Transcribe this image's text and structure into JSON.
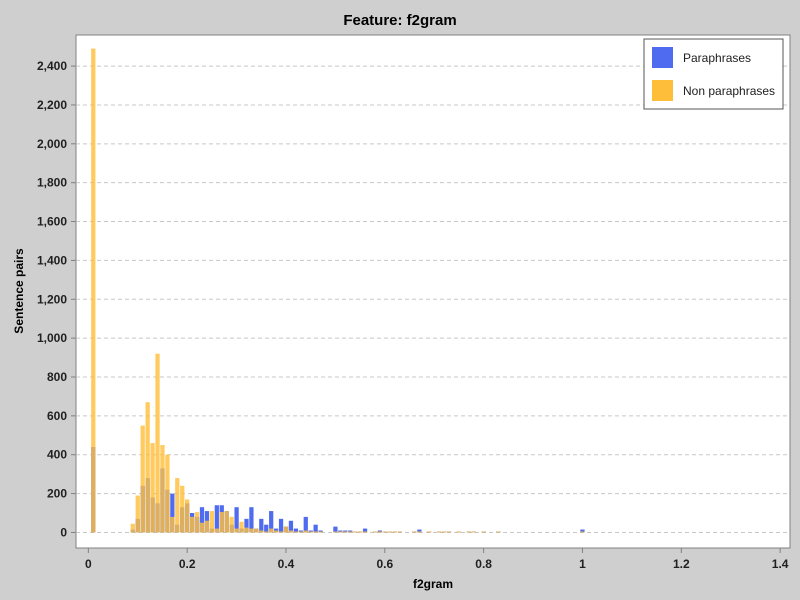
{
  "chart_data": {
    "type": "histogram",
    "title": "Feature: f2gram",
    "xlabel": "f2gram",
    "ylabel": "Sentence pairs",
    "xlim": [
      -0.025,
      1.42
    ],
    "ylim": [
      -80,
      2560
    ],
    "x_ticks": [
      "0",
      "0.2",
      "0.4",
      "0.6",
      "0.8",
      "1",
      "1.2",
      "1.4"
    ],
    "x_tick_values": [
      0,
      0.2,
      0.4,
      0.6,
      0.8,
      1.0,
      1.2,
      1.4
    ],
    "y_ticks": [
      "0",
      "200",
      "400",
      "600",
      "800",
      "1,000",
      "1,200",
      "1,400",
      "1,600",
      "1,800",
      "2,000",
      "2,200",
      "2,400"
    ],
    "y_tick_values": [
      0,
      200,
      400,
      600,
      800,
      1000,
      1200,
      1400,
      1600,
      1800,
      2000,
      2200,
      2400
    ],
    "grid": true,
    "legend_position": "top-right",
    "bin_width": 0.01,
    "bin_centers": [
      0.01,
      0.09,
      0.1,
      0.11,
      0.12,
      0.13,
      0.14,
      0.15,
      0.16,
      0.17,
      0.18,
      0.19,
      0.2,
      0.21,
      0.22,
      0.23,
      0.24,
      0.25,
      0.26,
      0.27,
      0.28,
      0.29,
      0.3,
      0.31,
      0.32,
      0.33,
      0.34,
      0.35,
      0.36,
      0.37,
      0.38,
      0.39,
      0.4,
      0.41,
      0.42,
      0.43,
      0.44,
      0.45,
      0.46,
      0.47,
      0.5,
      0.51,
      0.52,
      0.53,
      0.54,
      0.55,
      0.56,
      0.58,
      0.59,
      0.6,
      0.61,
      0.62,
      0.63,
      0.66,
      0.67,
      0.69,
      0.71,
      0.72,
      0.73,
      0.75,
      0.77,
      0.78,
      0.8,
      0.83,
      1.0
    ],
    "series": [
      {
        "name": "Paraphrases",
        "color": "#4f6cf0",
        "values": [
          440,
          15,
          70,
          240,
          280,
          180,
          150,
          330,
          220,
          200,
          40,
          130,
          150,
          100,
          80,
          130,
          110,
          20,
          140,
          140,
          110,
          40,
          130,
          20,
          70,
          130,
          20,
          70,
          40,
          110,
          20,
          70,
          30,
          60,
          20,
          10,
          80,
          10,
          40,
          10,
          30,
          10,
          10,
          10,
          5,
          5,
          20,
          5,
          10,
          5,
          5,
          5,
          5,
          5,
          15,
          5,
          5,
          5,
          5,
          5,
          5,
          5,
          5,
          5,
          15
        ]
      },
      {
        "name": "Non paraphrases",
        "color": "#ffbe3a",
        "values": [
          2490,
          45,
          190,
          550,
          670,
          460,
          920,
          450,
          400,
          80,
          280,
          240,
          170,
          80,
          105,
          50,
          60,
          110,
          20,
          105,
          110,
          80,
          20,
          55,
          25,
          20,
          20,
          10,
          5,
          20,
          10,
          5,
          30,
          10,
          5,
          5,
          10,
          5,
          5,
          5,
          5,
          5,
          5,
          5,
          5,
          5,
          5,
          5,
          5,
          5,
          5,
          5,
          5,
          5,
          5,
          5,
          5,
          5,
          5,
          5,
          5,
          5,
          5,
          5,
          5
        ]
      }
    ]
  },
  "legend": {
    "paraphrases_label": "Paraphrases",
    "non_paraphrases_label": "Non paraphrases",
    "paraphrases_color": "#4f6cf0",
    "non_paraphrases_color": "#ffbe3a"
  }
}
